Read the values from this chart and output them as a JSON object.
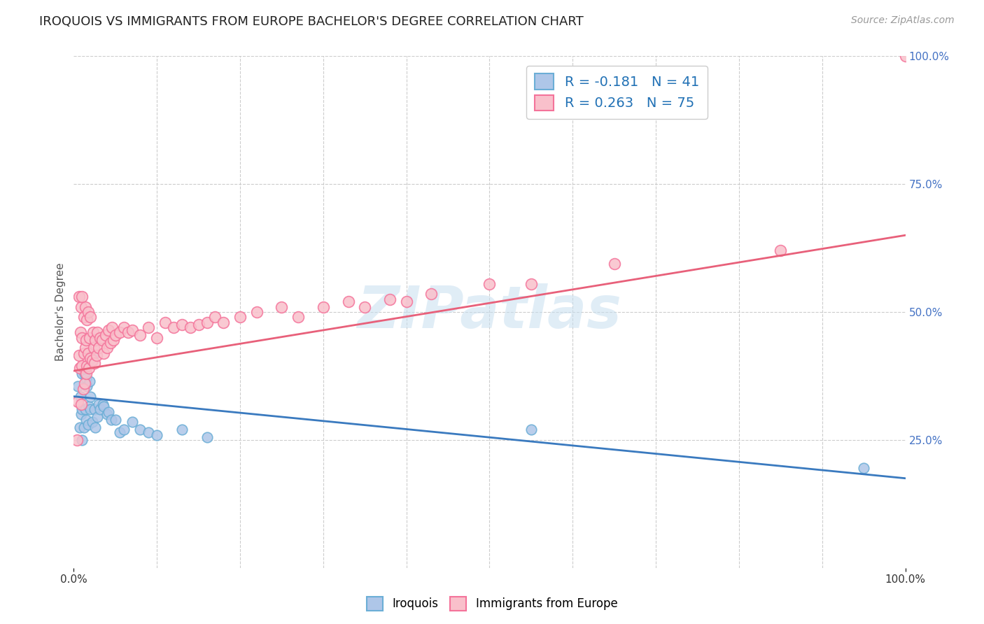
{
  "title": "IROQUOIS VS IMMIGRANTS FROM EUROPE BACHELOR'S DEGREE CORRELATION CHART",
  "source": "Source: ZipAtlas.com",
  "ylabel": "Bachelor's Degree",
  "xlabel": "",
  "xlim": [
    0,
    1
  ],
  "ylim": [
    0,
    1
  ],
  "legend_r1": "R = -0.181",
  "legend_n1": "N = 41",
  "legend_r2": "R = 0.263",
  "legend_n2": "N = 75",
  "blue_scatter_face": "#aec6e8",
  "blue_scatter_edge": "#6baed6",
  "pink_scatter_face": "#f9c0cb",
  "pink_scatter_edge": "#f4739a",
  "blue_line_color": "#3a7abf",
  "pink_line_color": "#e8607a",
  "watermark_color": "#c8dff0",
  "background_color": "#ffffff",
  "grid_color": "#cccccc",
  "title_color": "#222222",
  "source_color": "#999999",
  "right_tick_color": "#4472c4",
  "legend_text_color": "#2171b5",
  "legend_n_color": "#333333",
  "title_fontsize": 13,
  "axis_label_fontsize": 11,
  "tick_fontsize": 11,
  "legend_fontsize": 14,
  "source_fontsize": 10,
  "iroquois_x": [
    0.005,
    0.007,
    0.008,
    0.009,
    0.01,
    0.01,
    0.01,
    0.012,
    0.013,
    0.014,
    0.015,
    0.015,
    0.016,
    0.017,
    0.018,
    0.019,
    0.02,
    0.02,
    0.022,
    0.023,
    0.025,
    0.026,
    0.028,
    0.03,
    0.032,
    0.035,
    0.036,
    0.04,
    0.042,
    0.045,
    0.05,
    0.055,
    0.06,
    0.07,
    0.08,
    0.09,
    0.1,
    0.13,
    0.16,
    0.55,
    0.95
  ],
  "iroquois_y": [
    0.355,
    0.275,
    0.335,
    0.3,
    0.25,
    0.31,
    0.38,
    0.275,
    0.38,
    0.31,
    0.29,
    0.37,
    0.355,
    0.28,
    0.315,
    0.365,
    0.31,
    0.335,
    0.285,
    0.415,
    0.31,
    0.275,
    0.295,
    0.32,
    0.31,
    0.32,
    0.315,
    0.3,
    0.305,
    0.29,
    0.29,
    0.265,
    0.27,
    0.285,
    0.27,
    0.265,
    0.26,
    0.27,
    0.255,
    0.27,
    0.195
  ],
  "europe_x": [
    0.004,
    0.005,
    0.006,
    0.006,
    0.007,
    0.008,
    0.009,
    0.009,
    0.01,
    0.01,
    0.01,
    0.011,
    0.012,
    0.012,
    0.013,
    0.014,
    0.014,
    0.015,
    0.015,
    0.016,
    0.016,
    0.017,
    0.017,
    0.018,
    0.019,
    0.02,
    0.02,
    0.022,
    0.023,
    0.024,
    0.025,
    0.026,
    0.027,
    0.028,
    0.03,
    0.032,
    0.034,
    0.036,
    0.038,
    0.04,
    0.042,
    0.044,
    0.046,
    0.048,
    0.05,
    0.055,
    0.06,
    0.065,
    0.07,
    0.08,
    0.09,
    0.1,
    0.11,
    0.12,
    0.13,
    0.14,
    0.15,
    0.16,
    0.17,
    0.18,
    0.2,
    0.22,
    0.25,
    0.27,
    0.3,
    0.33,
    0.35,
    0.38,
    0.4,
    0.43,
    0.5,
    0.55,
    0.65,
    0.85,
    1.0
  ],
  "europe_y": [
    0.25,
    0.325,
    0.415,
    0.53,
    0.39,
    0.46,
    0.32,
    0.51,
    0.395,
    0.45,
    0.53,
    0.35,
    0.42,
    0.49,
    0.36,
    0.43,
    0.51,
    0.38,
    0.445,
    0.395,
    0.485,
    0.42,
    0.5,
    0.39,
    0.45,
    0.41,
    0.49,
    0.405,
    0.46,
    0.43,
    0.4,
    0.445,
    0.415,
    0.46,
    0.43,
    0.45,
    0.445,
    0.42,
    0.455,
    0.43,
    0.465,
    0.44,
    0.47,
    0.445,
    0.455,
    0.46,
    0.47,
    0.46,
    0.465,
    0.455,
    0.47,
    0.45,
    0.48,
    0.47,
    0.475,
    0.47,
    0.475,
    0.48,
    0.49,
    0.48,
    0.49,
    0.5,
    0.51,
    0.49,
    0.51,
    0.52,
    0.51,
    0.525,
    0.52,
    0.535,
    0.555,
    0.555,
    0.595,
    0.62,
    1.0
  ],
  "blue_trendline": [
    0.0,
    1.0,
    0.335,
    0.175
  ],
  "pink_trendline": [
    0.0,
    1.0,
    0.385,
    0.65
  ]
}
